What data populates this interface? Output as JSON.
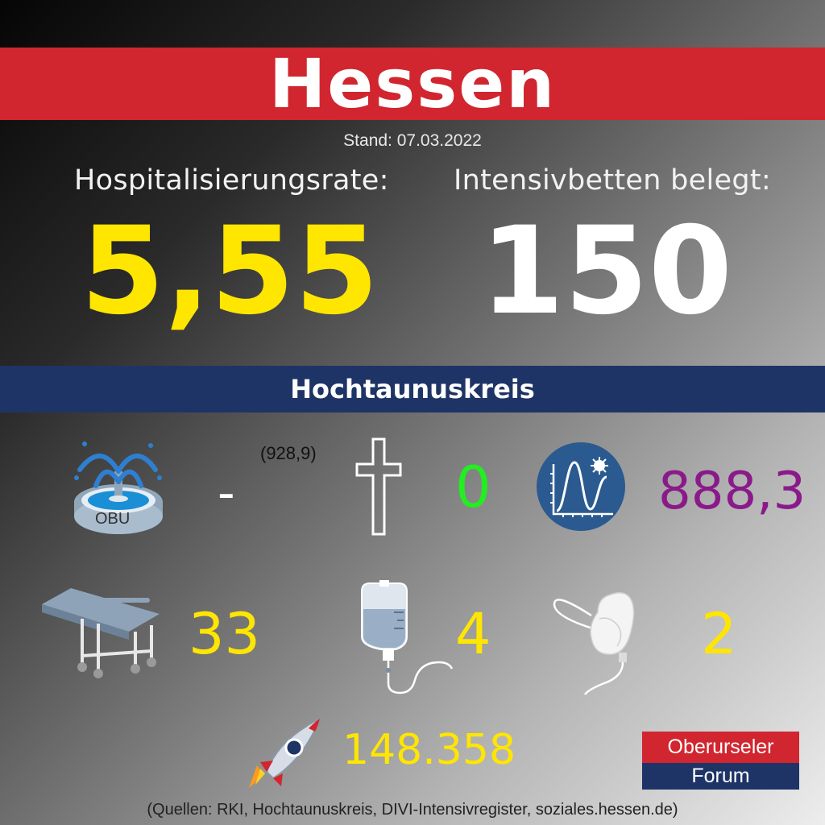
{
  "header": {
    "title": "Hessen",
    "stand": "Stand: 07.03.2022"
  },
  "hessen": {
    "hosp_label": "Hospitalisierungsrate:",
    "hosp_value": "5,55",
    "icu_label": "Intensivbetten belegt:",
    "icu_value": "150"
  },
  "region": {
    "name": "Hochtaunuskreis"
  },
  "stats": {
    "obu_label": "OBU",
    "obu_value": "-",
    "obu_sub": "(928,9)",
    "deaths_value": "0",
    "incidence_value": "888,3",
    "hospital_value": "33",
    "iv_value": "4",
    "ventilation_value": "2",
    "vaccination_value": "148.358"
  },
  "logo": {
    "line1": "Oberurseler",
    "line2": "Forum"
  },
  "footer": {
    "sources": "(Quellen: RKI, Hochtaunuskreis, DIVI-Intensivregister, soziales.hessen.de)"
  },
  "colors": {
    "red": "#d1262f",
    "navy": "#1e3466",
    "yellow": "#ffe600",
    "green": "#22ee22",
    "purple": "#8a1a8a",
    "icon_blue": "#2a5a8f"
  },
  "icons": [
    "fountain-icon",
    "cross-icon",
    "curve-virus-icon",
    "hospital-bed-icon",
    "iv-bag-icon",
    "oxygen-mask-icon",
    "rocket-icon"
  ]
}
